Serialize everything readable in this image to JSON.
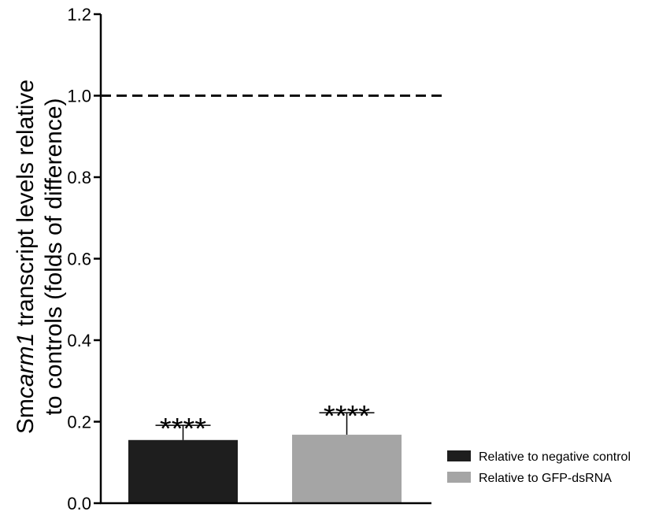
{
  "chart_data": {
    "type": "bar",
    "categories": [
      "Relative to negative control",
      "Relative to GFP-dsRNA"
    ],
    "series": [
      {
        "name": "Relative to negative control",
        "value": 0.155,
        "error": 0.036,
        "color": "#1e1e1e",
        "significance": "****"
      },
      {
        "name": "Relative to GFP-dsRNA",
        "value": 0.168,
        "error": 0.054,
        "color": "#a5a5a5",
        "significance": "****"
      }
    ],
    "ylabel": {
      "line1_prefix": "Sm",
      "line1_italic": "carm1",
      "line1_suffix": " transcript levels relative",
      "line2": "to controls (folds of difference)"
    },
    "xlabel": "",
    "ylim": [
      0,
      1.2
    ],
    "yticks": [
      "0.0",
      "0.2",
      "0.4",
      "0.6",
      "0.8",
      "1.0",
      "1.2"
    ],
    "reference_line": {
      "value": 1.0,
      "style": "dashed"
    },
    "grid": false,
    "legend_position": "bottom-right"
  }
}
